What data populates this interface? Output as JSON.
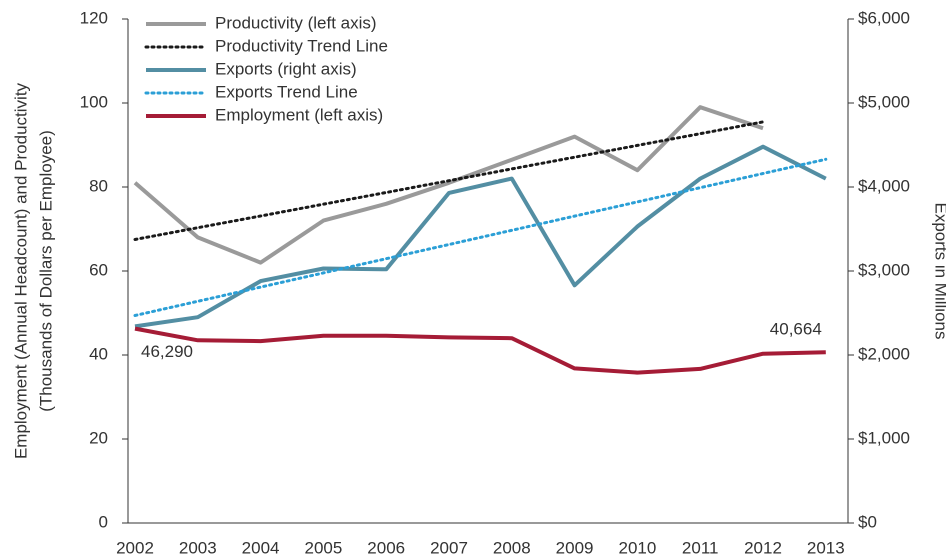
{
  "chart_data": {
    "type": "line",
    "y_label": [
      "Employment (Annual Headcount) and Productivity",
      "(Thousands of Dollars per Employee)"
    ],
    "y2_label": "Exports in Millions",
    "categories": [
      "2002",
      "2003",
      "2004",
      "2005",
      "2006",
      "2007",
      "2008",
      "2009",
      "2010",
      "2011",
      "2012",
      "2013"
    ],
    "ylim": [
      0,
      120
    ],
    "yticks": [
      0,
      20,
      40,
      60,
      80,
      100,
      120
    ],
    "y2lim": [
      0,
      6000
    ],
    "y2ticks": [
      {
        "value": 0,
        "label": "$0"
      },
      {
        "value": 1000,
        "label": "$1,000"
      },
      {
        "value": 2000,
        "label": "$2,000"
      },
      {
        "value": 3000,
        "label": "$3,000"
      },
      {
        "value": 4000,
        "label": "$4,000"
      },
      {
        "value": 5000,
        "label": "$5,000"
      },
      {
        "value": 6000,
        "label": "$6,000"
      }
    ],
    "legend": "top-left",
    "series": [
      {
        "name": "Productivity (left axis)",
        "color": "#9a9a9a",
        "dash": "solid",
        "values": [
          81,
          68,
          62,
          72,
          76,
          81,
          86.5,
          92,
          84,
          99,
          94,
          null
        ]
      },
      {
        "name": "Productivity Trend Line",
        "color": "#1a1a1a",
        "dash": "dotted",
        "values": [
          67.5,
          70.3,
          73.1,
          75.9,
          78.7,
          81.5,
          84.3,
          87.1,
          89.9,
          92.7,
          95.5,
          null
        ]
      },
      {
        "name": "Exports (right axis)",
        "color": "#538ea3",
        "dash": "solid",
        "axis": "y2",
        "values": [
          2340,
          2450,
          2880,
          3030,
          3020,
          3930,
          4100,
          2830,
          3530,
          4100,
          4480,
          4100
        ]
      },
      {
        "name": "Exports Trend Line",
        "color": "#2b9fd6",
        "dash": "dotted",
        "axis": "y2",
        "values": [
          2470,
          2639,
          2808,
          2977,
          3146,
          3316,
          3485,
          3654,
          3823,
          3992,
          4161,
          4330
        ]
      },
      {
        "name": "Employment (left axis)",
        "color": "#a51c36",
        "dash": "solid",
        "values": [
          46.29,
          43.5,
          43.3,
          44.6,
          44.6,
          44.2,
          44.0,
          36.8,
          35.8,
          36.7,
          40.3,
          40.664
        ],
        "value_labels": [
          "46,290",
          null,
          null,
          null,
          null,
          null,
          null,
          null,
          null,
          null,
          null,
          "40,664"
        ]
      }
    ]
  }
}
